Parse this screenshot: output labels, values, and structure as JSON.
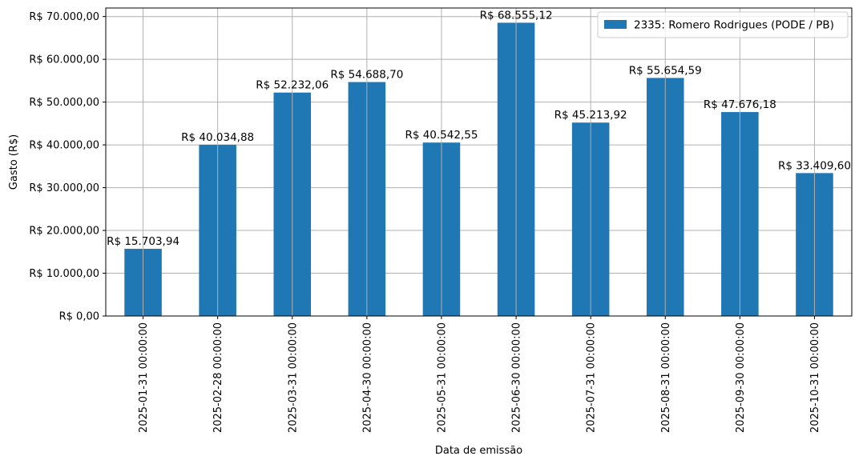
{
  "chart_data": {
    "type": "bar",
    "categories": [
      "2025-01-31 00:00:00",
      "2025-02-28 00:00:00",
      "2025-03-31 00:00:00",
      "2025-04-30 00:00:00",
      "2025-05-31 00:00:00",
      "2025-06-30 00:00:00",
      "2025-07-31 00:00:00",
      "2025-08-31 00:00:00",
      "2025-09-30 00:00:00",
      "2025-10-31 00:00:00"
    ],
    "series": [
      {
        "name": "2335: Romero Rodrigues (PODE / PB)",
        "color": "#1f77b4",
        "values": [
          15703.94,
          40034.88,
          52232.06,
          54688.7,
          40542.55,
          68555.12,
          45213.92,
          55654.59,
          47676.18,
          33409.6
        ]
      }
    ],
    "data_labels": [
      "R$ 15.703,94",
      "R$ 40.034,88",
      "R$ 52.232,06",
      "R$ 54.688,70",
      "R$ 40.542,55",
      "R$ 68.555,12",
      "R$ 45.213,92",
      "R$ 55.654,59",
      "R$ 47.676,18",
      "R$ 33.409,60"
    ],
    "y_ticks": [
      0,
      10000,
      20000,
      30000,
      40000,
      50000,
      60000,
      70000
    ],
    "y_tick_labels": [
      "R$ 0,00",
      "R$ 10.000,00",
      "R$ 20.000,00",
      "R$ 30.000,00",
      "R$ 40.000,00",
      "R$ 50.000,00",
      "R$ 60.000,00",
      "R$ 70.000,00"
    ],
    "ylim": [
      0,
      72000
    ],
    "xlabel": "Data de emissão",
    "ylabel": "Gasto (R$)",
    "title": "",
    "grid": true,
    "legend_position": "top-right"
  }
}
